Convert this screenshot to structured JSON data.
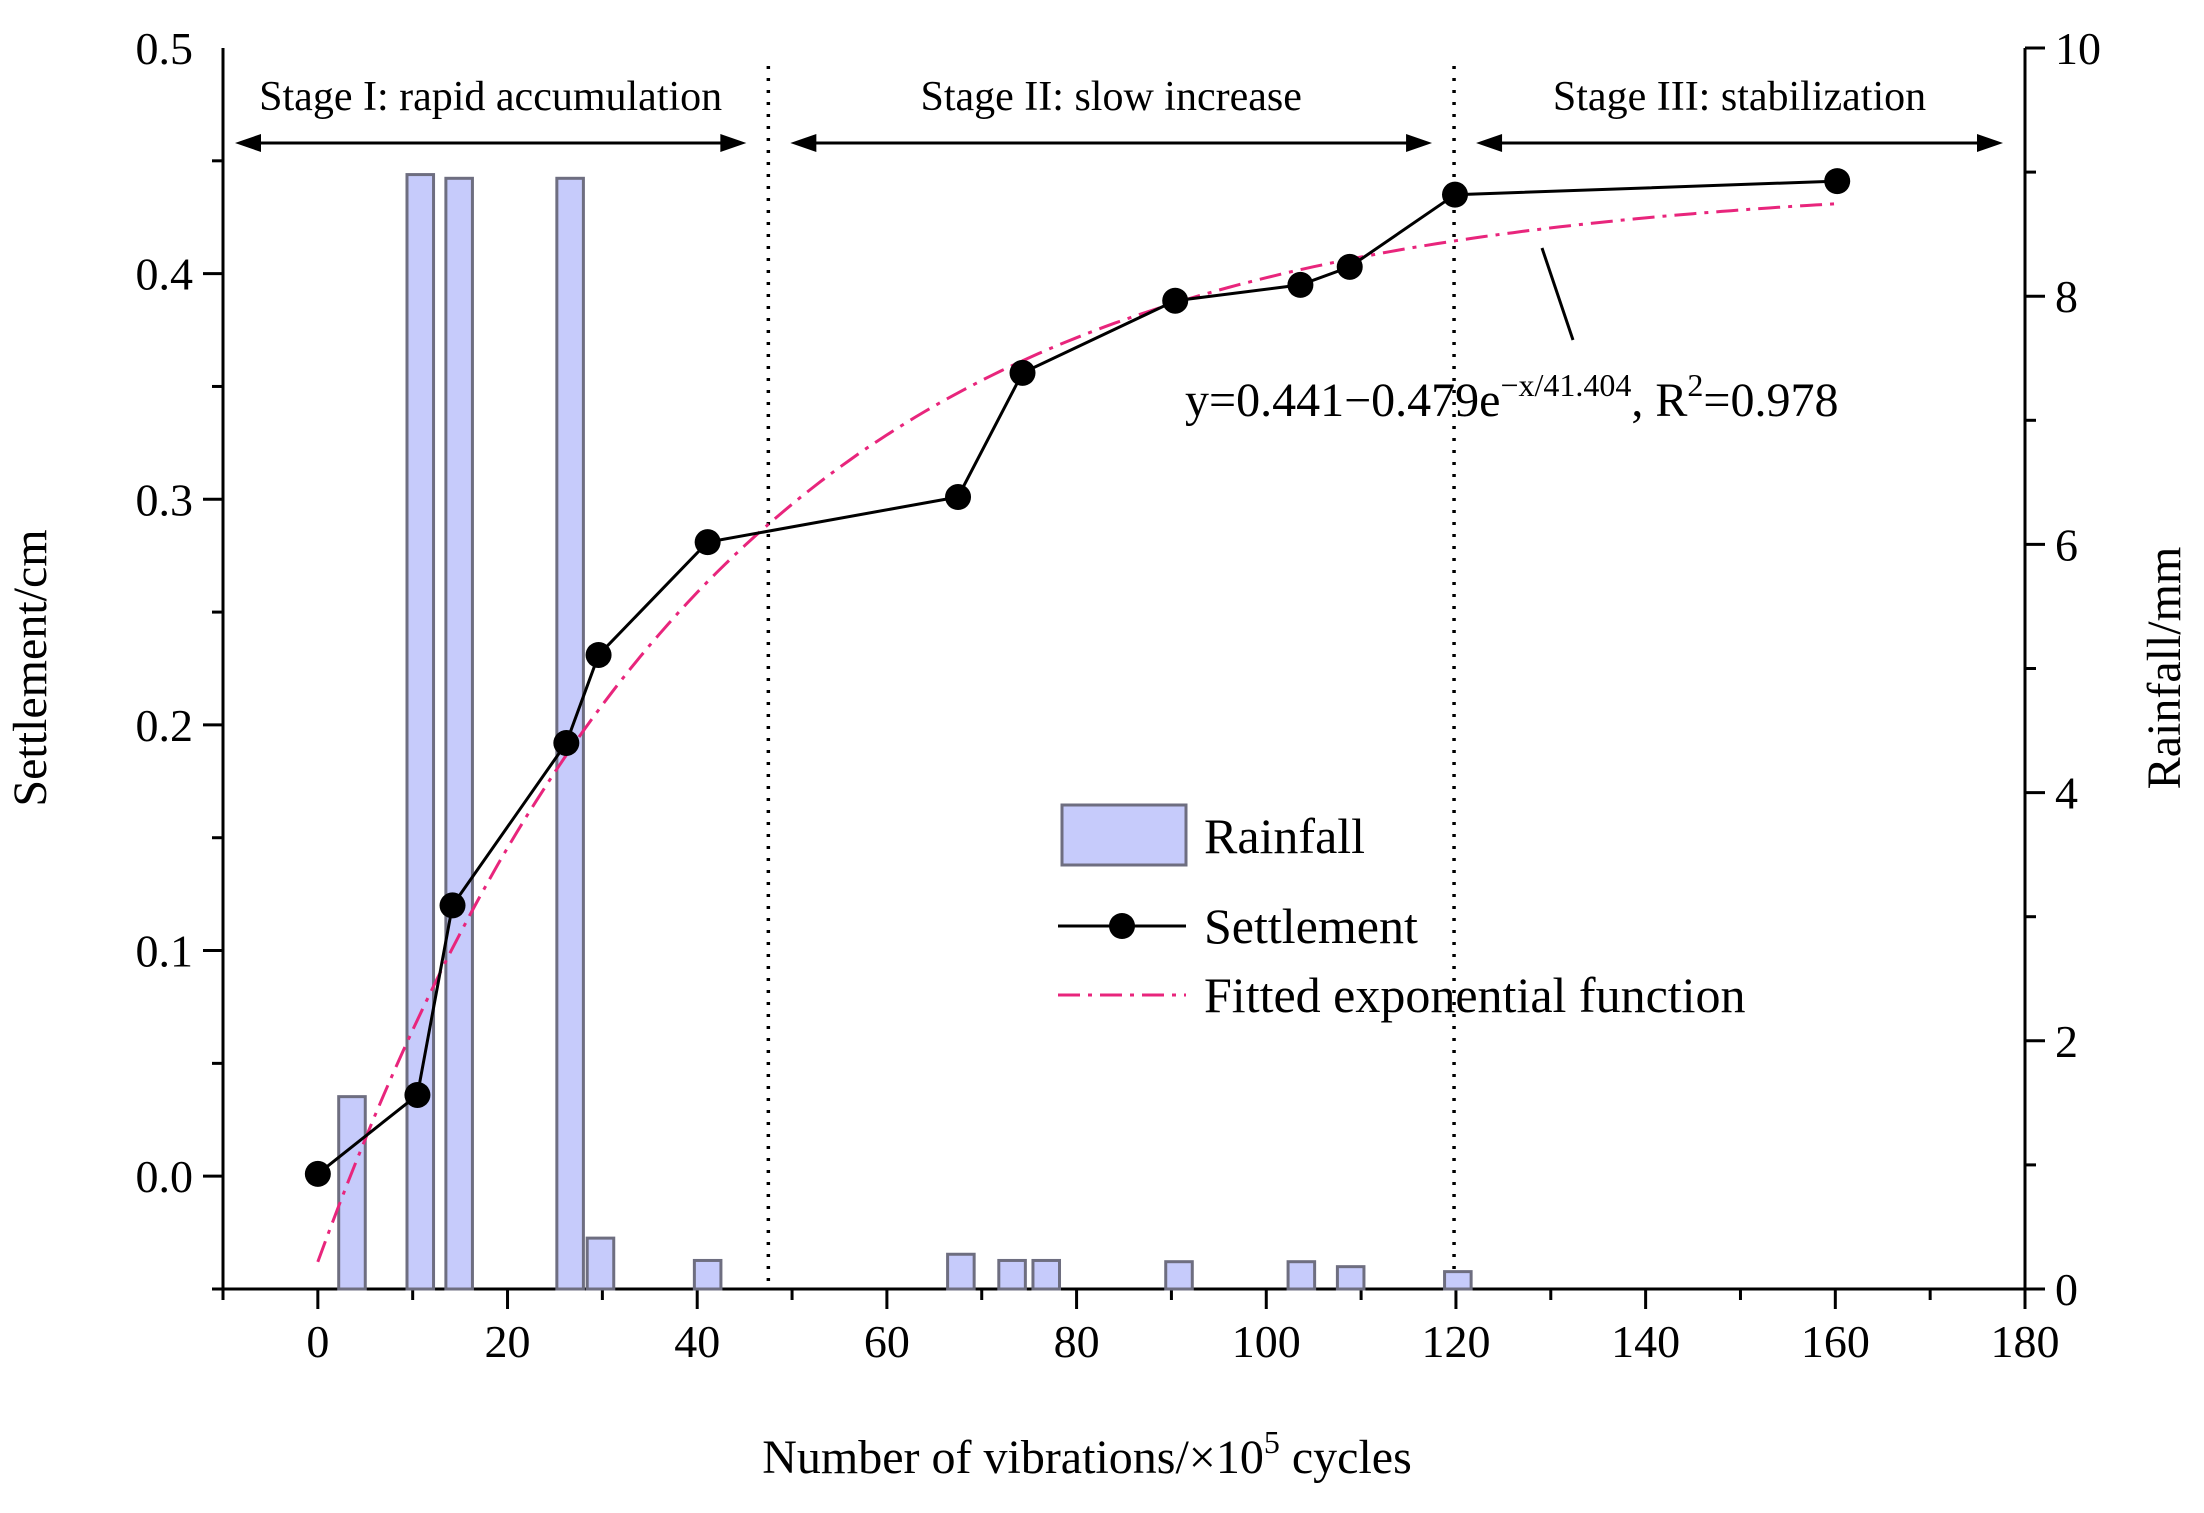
{
  "chart_data": {
    "type": "bar",
    "xlabel_prefix": "Number of vibrations/×10",
    "xlabel_sup": "5",
    "xlabel_suffix": " cycles",
    "ylabel_left": "Settlement/cm",
    "ylabel_right": "Rainfall/mm",
    "xlim": [
      -10,
      180
    ],
    "ylim_left": [
      -0.05,
      0.5
    ],
    "ylim_right": [
      0,
      10
    ],
    "x_ticks": [
      "0",
      "20",
      "40",
      "60",
      "80",
      "100",
      "120",
      "140",
      "160",
      "180"
    ],
    "y_left_ticks": [
      "0.0",
      "0.1",
      "0.2",
      "0.3",
      "0.4",
      "0.5"
    ],
    "y_right_ticks": [
      "0",
      "2",
      "4",
      "6",
      "8",
      "10"
    ],
    "grid": false,
    "stages": [
      {
        "label": "Stage I: rapid accumulation",
        "from": -10,
        "to": 47.5
      },
      {
        "label": "Stage II: slow increase",
        "from": 47.5,
        "to": 119.8
      },
      {
        "label": "Stage III: stabilization",
        "from": 119.8,
        "to": 180
      }
    ],
    "stage_boundaries": [
      47.5,
      119.8
    ],
    "series": [
      {
        "name": "Rainfall",
        "kind": "bar",
        "axis": "right",
        "color": "#c6cbfb",
        "edge_color": "#6e6e80",
        "bar_width": 2.8,
        "x": [
          3.6,
          10.8,
          14.9,
          26.6,
          29.8,
          41.1,
          67.8,
          73.2,
          76.8,
          90.8,
          103.7,
          108.9,
          120.2
        ],
        "values": [
          1.55,
          8.98,
          8.95,
          8.95,
          0.41,
          0.23,
          0.28,
          0.23,
          0.23,
          0.22,
          0.22,
          0.18,
          0.14
        ]
      },
      {
        "name": "Settlement",
        "kind": "line",
        "axis": "left",
        "color": "#000000",
        "marker": "circle",
        "x": [
          0,
          10.5,
          14.2,
          26.2,
          29.6,
          41.1,
          67.5,
          74.3,
          90.4,
          103.6,
          108.8,
          119.9,
          160.2
        ],
        "values": [
          0.001,
          0.036,
          0.12,
          0.192,
          0.231,
          0.281,
          0.301,
          0.356,
          0.388,
          0.395,
          0.403,
          0.435,
          0.441
        ]
      },
      {
        "name": "Fitted exponential function",
        "kind": "fit",
        "axis": "left",
        "color": "#e8257c",
        "dash": "dash-dot",
        "model": {
          "a": 0.441,
          "b": 0.479,
          "c": 41.404
        },
        "x_range": [
          0,
          160
        ]
      }
    ],
    "equation": {
      "prefix": "y=0.441−0.479e",
      "exponent": "−x/41.404",
      "comma": ", R",
      "r_sup": "2",
      "value": "=0.978"
    },
    "legend_placement": "center"
  }
}
